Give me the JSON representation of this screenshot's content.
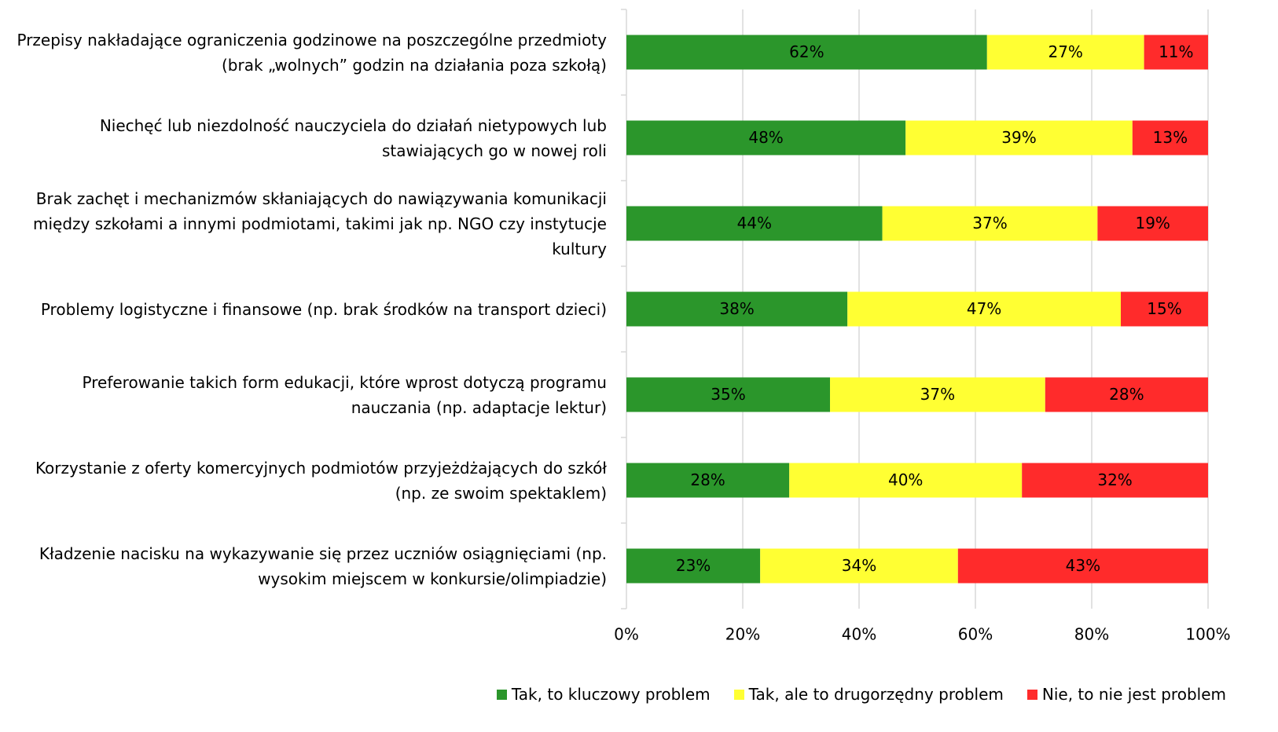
{
  "chart_data": {
    "type": "stacked_barh",
    "categories": [
      "Przepisy nakładające ograniczenia godzinowe na poszczególne przedmioty (brak „wolnych” godzin na działania poza szkołą)",
      "Niechęć lub niezdolność nauczyciela do działań nietypowych lub stawiających go w nowej roli",
      "Brak zachęt i mechanizmów skłaniających do nawiązywania komunikacji między szkołami a innymi podmiotami, takimi jak np. NGO czy instytucje kultury",
      "Problemy logistyczne i finansowe (np. brak środków na transport dzieci)",
      "Preferowanie takich form edukacji, które wprost dotyczą programu nauczania (np. adaptacje lektur)",
      "Korzystanie z oferty komercyjnych podmiotów przyjeżdżających do szkół (np. ze swoim spektaklem)",
      "Kładzenie nacisku na wykazywanie się przez uczniów osiągnięciami (np. wysokim miejscem w konkursie/olimpiadzie)"
    ],
    "series": [
      {
        "name": "Tak, to kluczowy problem",
        "color": "#2b962b",
        "values": [
          62,
          48,
          44,
          38,
          35,
          28,
          23
        ],
        "value_labels": [
          "62%",
          "48%",
          "44%",
          "38%",
          "35%",
          "28%",
          "23%"
        ]
      },
      {
        "name": "Tak, ale to drugorzędny problem",
        "color": "#ffff33",
        "values": [
          27,
          39,
          37,
          47,
          37,
          40,
          34
        ],
        "value_labels": [
          "27%",
          "39%",
          "37%",
          "47%",
          "37%",
          "40%",
          "34%"
        ]
      },
      {
        "name": "Nie, to nie jest problem",
        "color": "#ff2b2b",
        "values": [
          11,
          13,
          19,
          15,
          28,
          32,
          43
        ],
        "value_labels": [
          "11%",
          "13%",
          "19%",
          "15%",
          "28%",
          "32%",
          "43%"
        ]
      }
    ],
    "xlim": [
      0,
      100
    ],
    "xticks": [
      {
        "value": 0,
        "label": "0%"
      },
      {
        "value": 20,
        "label": "20%"
      },
      {
        "value": 40,
        "label": "40%"
      },
      {
        "value": 60,
        "label": "60%"
      },
      {
        "value": 80,
        "label": "80%"
      },
      {
        "value": 100,
        "label": "100%"
      }
    ],
    "grid": true,
    "legend": "bottom"
  }
}
